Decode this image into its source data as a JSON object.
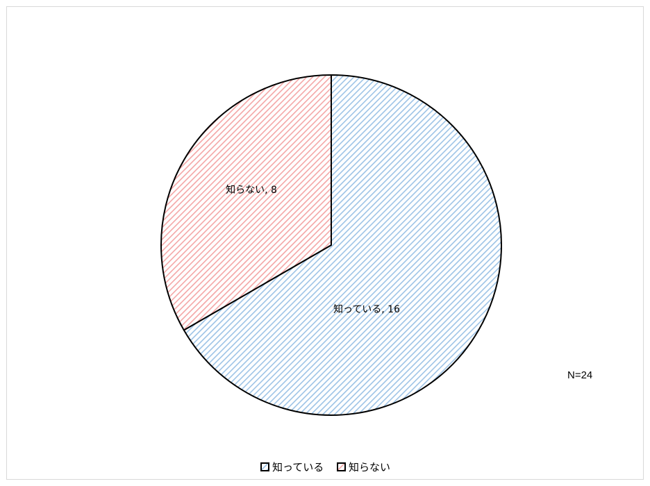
{
  "chart_data": {
    "type": "pie",
    "slices": [
      {
        "label": "知っている",
        "value": 16,
        "data_label": "知っている, 16",
        "color": "#9dc3e6",
        "pattern": "diagonal-hatch"
      },
      {
        "label": "知らない",
        "value": 8,
        "data_label": "知らない, 8",
        "color": "#f4a6a6",
        "pattern": "diagonal-hatch"
      }
    ],
    "legend": {
      "placement": "bottom",
      "entries": [
        "知っている",
        "知らない"
      ]
    },
    "annotation": "N=24",
    "title": "",
    "start_angle": "12 o'clock",
    "direction": "clockwise"
  }
}
